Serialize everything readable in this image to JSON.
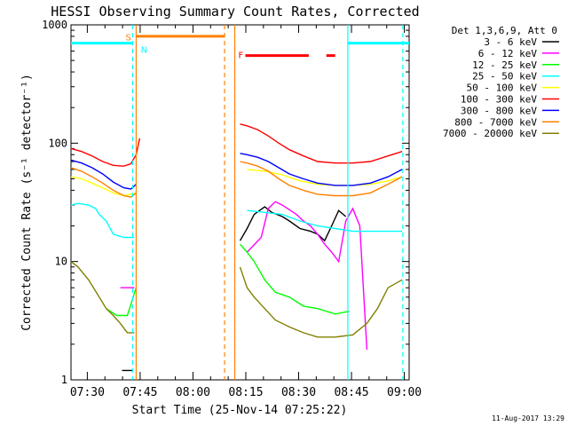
{
  "chart_data": {
    "type": "line",
    "title": "HESSI Observing Summary Count Rates, Corrected",
    "ylabel": "Corrected Count Rate (s⁻¹ detector⁻¹)",
    "xlabel": "Start Time (25-Nov-14 07:25:22)",
    "x_tick_labels": [
      "07:30",
      "07:45",
      "08:00",
      "08:15",
      "08:30",
      "08:45",
      "09:00"
    ],
    "x_tick_minutes": [
      4.633,
      19.633,
      34.633,
      49.633,
      64.633,
      79.633,
      94.633
    ],
    "xlim_minutes": [
      0,
      96
    ],
    "y_tick_labels": [
      "1",
      "10",
      "100",
      "1000"
    ],
    "ylim": [
      1,
      1000
    ],
    "yscale": "log",
    "legend_title": "Det 1,3,6,9, Att 0",
    "footer": "11-Aug-2017 13:29",
    "series": [
      {
        "name": "3 - 6 keV",
        "color": "#000000",
        "x": [
          0,
          13,
          14.5,
          17.5,
          18.5,
          46.5,
          48,
          50,
          52,
          55,
          57,
          60,
          62,
          65,
          68,
          70,
          72,
          74,
          76,
          78,
          79
        ],
        "y": [
          null,
          null,
          1.2,
          1.2,
          null,
          null,
          15,
          19,
          25,
          29,
          26,
          24,
          22,
          19,
          18,
          17,
          15,
          20,
          27,
          24,
          null
        ]
      },
      {
        "name": "6 - 12 keV",
        "color": "#ff00ff",
        "x": [
          0,
          14,
          15,
          16,
          17,
          18,
          18.5,
          46.5,
          50,
          54,
          56,
          58,
          60,
          64,
          66,
          68,
          70,
          72,
          74,
          76,
          78,
          80,
          82,
          84,
          84.5
        ],
        "y": [
          null,
          6,
          6,
          6,
          6,
          6,
          null,
          null,
          12,
          16,
          28,
          32,
          30,
          25,
          22,
          20,
          17,
          14,
          12,
          10,
          22,
          28,
          20,
          1.8,
          null
        ]
      },
      {
        "name": "12 - 25 keV",
        "color": "#00ff00",
        "x": [
          0,
          10,
          13,
          16,
          18.5,
          46.5,
          48,
          50,
          52,
          55,
          58,
          62,
          66,
          70,
          75,
          79,
          80,
          84
        ],
        "y": [
          null,
          4,
          3.5,
          3.5,
          6,
          null,
          14,
          12,
          10,
          7,
          5.5,
          5,
          4.2,
          4,
          3.6,
          3.8,
          null,
          null
        ]
      },
      {
        "name": "25 - 50 keV",
        "color": "#00ffff",
        "x": [
          0,
          2,
          5,
          7,
          8,
          10,
          12,
          15,
          18,
          18.5,
          46.5,
          50,
          55,
          60,
          65,
          70,
          75,
          80,
          85,
          90,
          94,
          95
        ],
        "y": [
          30,
          31,
          30,
          28,
          25,
          22,
          17,
          16,
          16,
          null,
          null,
          27,
          26,
          25,
          22,
          20,
          19,
          18,
          18,
          18,
          18,
          null
        ]
      },
      {
        "name": "50 - 100 keV",
        "color": "#ffff00",
        "x": [
          0,
          3,
          6,
          9,
          12,
          15,
          18.5,
          46.5,
          50,
          55,
          60,
          65,
          70,
          75,
          80,
          85,
          90,
          94
        ],
        "y": [
          52,
          50,
          46,
          42,
          38,
          36,
          38,
          null,
          60,
          58,
          54,
          48,
          45,
          44,
          44,
          45,
          48,
          52
        ]
      },
      {
        "name": "100 - 300 keV",
        "color": "#ff0000",
        "x": [
          0,
          3,
          6,
          9,
          12,
          15,
          17,
          18.5,
          19.5,
          46.5,
          48,
          50,
          53,
          56,
          59,
          62,
          66,
          70,
          75,
          80,
          85,
          90,
          94
        ],
        "y": [
          90,
          85,
          78,
          70,
          65,
          64,
          67,
          80,
          110,
          null,
          145,
          140,
          130,
          115,
          100,
          88,
          78,
          70,
          68,
          68,
          70,
          78,
          85
        ]
      },
      {
        "name": "300 - 800 keV",
        "color": "#0000ff",
        "x": [
          0,
          3,
          6,
          9,
          12,
          15,
          17,
          18.5,
          46.5,
          48,
          50,
          53,
          56,
          59,
          62,
          66,
          70,
          75,
          80,
          85,
          90,
          94
        ],
        "y": [
          72,
          68,
          62,
          55,
          47,
          42,
          41,
          45,
          null,
          82,
          80,
          76,
          70,
          62,
          55,
          50,
          46,
          44,
          44,
          46,
          52,
          60
        ]
      },
      {
        "name": "800 - 7000 keV",
        "color": "#ff8000",
        "x": [
          0,
          3,
          6,
          9,
          12,
          15,
          17,
          18.5,
          46.5,
          48,
          50,
          53,
          56,
          59,
          62,
          66,
          70,
          75,
          80,
          85,
          90,
          94
        ],
        "y": [
          62,
          58,
          52,
          46,
          40,
          36,
          35,
          38,
          null,
          70,
          68,
          64,
          58,
          50,
          44,
          40,
          37,
          36,
          36,
          38,
          45,
          52
        ]
      },
      {
        "name": "7000 - 20000 keV",
        "color": "#808000",
        "x": [
          0,
          2,
          5,
          8,
          10,
          12,
          14,
          16,
          18,
          18.5,
          46.5,
          48,
          50,
          52,
          55,
          58,
          62,
          66,
          70,
          75,
          80,
          84,
          87,
          90,
          94
        ],
        "y": [
          10,
          9,
          7,
          5,
          4,
          3.5,
          3,
          2.5,
          2.5,
          null,
          null,
          9,
          6,
          5,
          4,
          3.2,
          2.8,
          2.5,
          2.3,
          2.3,
          2.4,
          3,
          4,
          6,
          7
        ]
      }
    ],
    "markers": [
      {
        "label": "S",
        "color": "#ff8000"
      },
      {
        "label": "N",
        "color": "#00ffff"
      },
      {
        "label": "F",
        "color": "#ff0000"
      }
    ],
    "flag_bars": [
      {
        "color": "#00ffff",
        "x": [
          0,
          17.5
        ],
        "level": 700
      },
      {
        "color": "#ff8000",
        "x": [
          18.5,
          43.6
        ],
        "level": 800
      },
      {
        "color": "#ff0000",
        "x": [
          49.5,
          67.5
        ],
        "level": 550
      },
      {
        "color": "#ff0000",
        "x": [
          72.5,
          75
        ],
        "level": 550
      },
      {
        "color": "#00ffff",
        "x": [
          78.6,
          96
        ],
        "level": 700
      }
    ],
    "vertical_lines": [
      {
        "x": 17.5,
        "color": "#00ffff",
        "style": "dashed"
      },
      {
        "x": 18.5,
        "color": "#ff8000",
        "style": "solid"
      },
      {
        "x": 43.6,
        "color": "#ff8000",
        "style": "dashed"
      },
      {
        "x": 46.5,
        "color": "#ff8000",
        "style": "solid"
      },
      {
        "x": 78.6,
        "color": "#00ffff",
        "style": "solid"
      },
      {
        "x": 94.2,
        "color": "#00ffff",
        "style": "dashed"
      }
    ]
  }
}
